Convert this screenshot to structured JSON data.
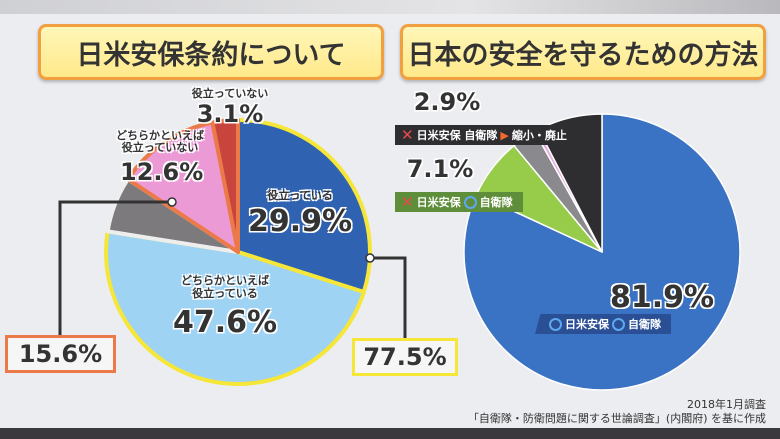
{
  "left_title": "日米安保条約について",
  "right_title": "日本の安全を守るための方法",
  "chart_data": [
    {
      "type": "pie",
      "title": "日米安保条約について",
      "slices": [
        {
          "label": "役立っている",
          "value": 29.9,
          "color": "#2f62b0"
        },
        {
          "label": "どちらかといえば役立っている",
          "value": 47.6,
          "color": "#9fd3f3"
        },
        {
          "label": "",
          "value": 6.8,
          "color": "#7c7a7c"
        },
        {
          "label": "どちらかといえば役立っていない",
          "value": 12.6,
          "color": "#ec9ad6"
        },
        {
          "label": "役立っていない",
          "value": 3.1,
          "color": "#c8453d"
        }
      ],
      "groups": [
        {
          "label": "useful_total",
          "value": "77.5%",
          "color": "#f5e638"
        },
        {
          "label": "not_useful_total",
          "value": "15.6%",
          "color": "#ec7a48"
        }
      ]
    },
    {
      "type": "pie",
      "title": "日本の安全を守るための方法",
      "slices": [
        {
          "label": "○日米安保 ○自衛隊",
          "value": 81.9,
          "color": "#3a72c4"
        },
        {
          "label": "×日米安保 ○自衛隊",
          "value": 7.1,
          "color": "#96cc4a"
        },
        {
          "label": "×日米安保 自衛隊 縮小・廃止",
          "value": 2.9,
          "color": "#8a8a8e"
        },
        {
          "label": "",
          "value": 0.5,
          "color": "#e8a8e0"
        },
        {
          "label": "",
          "value": 7.6,
          "color": "#2e2e30"
        }
      ]
    }
  ],
  "labels": {
    "l_useful": "役立っている",
    "l_useful_pct": "29.9%",
    "l_rather_useful_1": "どちらかといえば",
    "l_rather_useful_2": "役立っている",
    "l_rather_useful_pct": "47.6%",
    "l_rather_not_1": "どちらかといえば",
    "l_rather_not_2": "役立っていない",
    "l_rather_not_pct": "12.6%",
    "l_not": "役立っていない",
    "l_not_pct": "3.1%",
    "l_total_yes": "77.5%",
    "l_total_no": "15.6%",
    "r_both_pct": "81.9%",
    "r_both_a": "日米安保",
    "r_both_b": "自衛隊",
    "r_sdf_pct": "7.1%",
    "r_sdf_a": "日米安保",
    "r_sdf_b": "自衛隊",
    "r_none_pct": "2.9%",
    "r_none_a": "日米安保 自衛隊",
    "r_none_b": "縮小・廃止"
  },
  "footer": {
    "date": "2018年1月調査",
    "source": "「自衛隊・防衛問題に関する世論調査」(内閣府) を基に作成"
  }
}
